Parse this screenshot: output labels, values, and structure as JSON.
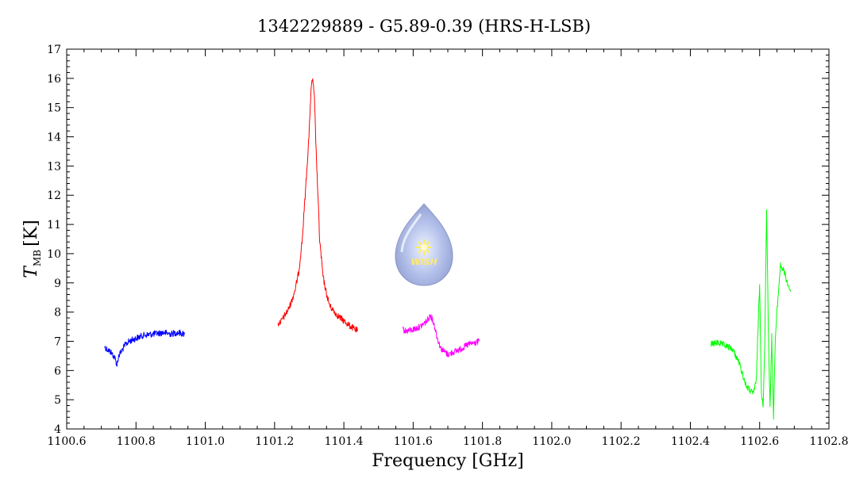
{
  "chart_data": {
    "type": "line",
    "title": "1342229889 - G5.89-0.39 (HRS-H-LSB)",
    "xlabel": "Frequency [GHz]",
    "ylabel_main": "T",
    "ylabel_sub": "MB",
    "ylabel_unit": "[K]",
    "xlim": [
      1100.6,
      1102.8
    ],
    "ylim": [
      4,
      17
    ],
    "xticks": [
      "1100.6",
      "1100.8",
      "1101.0",
      "1101.2",
      "1101.4",
      "1101.6",
      "1101.8",
      "1102.0",
      "1102.2",
      "1102.4",
      "1102.6",
      "1102.8"
    ],
    "yticks": [
      "4",
      "5",
      "6",
      "7",
      "8",
      "9",
      "10",
      "11",
      "12",
      "13",
      "14",
      "15",
      "16",
      "17"
    ],
    "grid": false,
    "logo_text": "WISH",
    "series": [
      {
        "color": "#0000ff",
        "x": [
          1100.71,
          1100.72,
          1100.73,
          1100.74,
          1100.745,
          1100.75,
          1100.76,
          1100.77,
          1100.78,
          1100.8,
          1100.82,
          1100.85,
          1100.88,
          1100.9,
          1100.92,
          1100.94
        ],
        "y": [
          6.8,
          6.7,
          6.6,
          6.4,
          6.2,
          6.5,
          6.7,
          6.9,
          7.0,
          7.1,
          7.2,
          7.25,
          7.3,
          7.25,
          7.3,
          7.25
        ]
      },
      {
        "color": "#ff0000",
        "x": [
          1101.21,
          1101.22,
          1101.23,
          1101.24,
          1101.25,
          1101.26,
          1101.27,
          1101.28,
          1101.29,
          1101.3,
          1101.305,
          1101.31,
          1101.315,
          1101.32,
          1101.33,
          1101.34,
          1101.35,
          1101.36,
          1101.38,
          1101.4,
          1101.42,
          1101.44
        ],
        "y": [
          7.6,
          7.7,
          7.9,
          8.1,
          8.4,
          8.8,
          9.4,
          10.5,
          12.3,
          14.2,
          15.6,
          16.0,
          15.3,
          13.5,
          10.5,
          9.2,
          8.6,
          8.2,
          7.9,
          7.7,
          7.5,
          7.35
        ]
      },
      {
        "color": "#ff00ff",
        "x": [
          1101.57,
          1101.58,
          1101.6,
          1101.62,
          1101.64,
          1101.65,
          1101.66,
          1101.67,
          1101.68,
          1101.7,
          1101.72,
          1101.74,
          1101.76,
          1101.78,
          1101.79
        ],
        "y": [
          7.4,
          7.35,
          7.4,
          7.5,
          7.7,
          7.9,
          7.6,
          7.1,
          6.75,
          6.55,
          6.65,
          6.75,
          6.9,
          6.95,
          7.0
        ]
      },
      {
        "color": "#00ff00",
        "x": [
          1102.46,
          1102.48,
          1102.5,
          1102.52,
          1102.54,
          1102.56,
          1102.58,
          1102.59,
          1102.6,
          1102.605,
          1102.61,
          1102.615,
          1102.62,
          1102.625,
          1102.63,
          1102.635,
          1102.64,
          1102.645,
          1102.65,
          1102.66,
          1102.67,
          1102.68,
          1102.69
        ],
        "y": [
          6.9,
          6.95,
          6.85,
          6.75,
          6.3,
          5.5,
          5.2,
          5.6,
          9.0,
          5.3,
          4.7,
          7.0,
          11.6,
          7.5,
          4.7,
          7.2,
          4.4,
          7.0,
          8.0,
          9.6,
          9.4,
          9.0,
          8.7
        ]
      }
    ]
  }
}
